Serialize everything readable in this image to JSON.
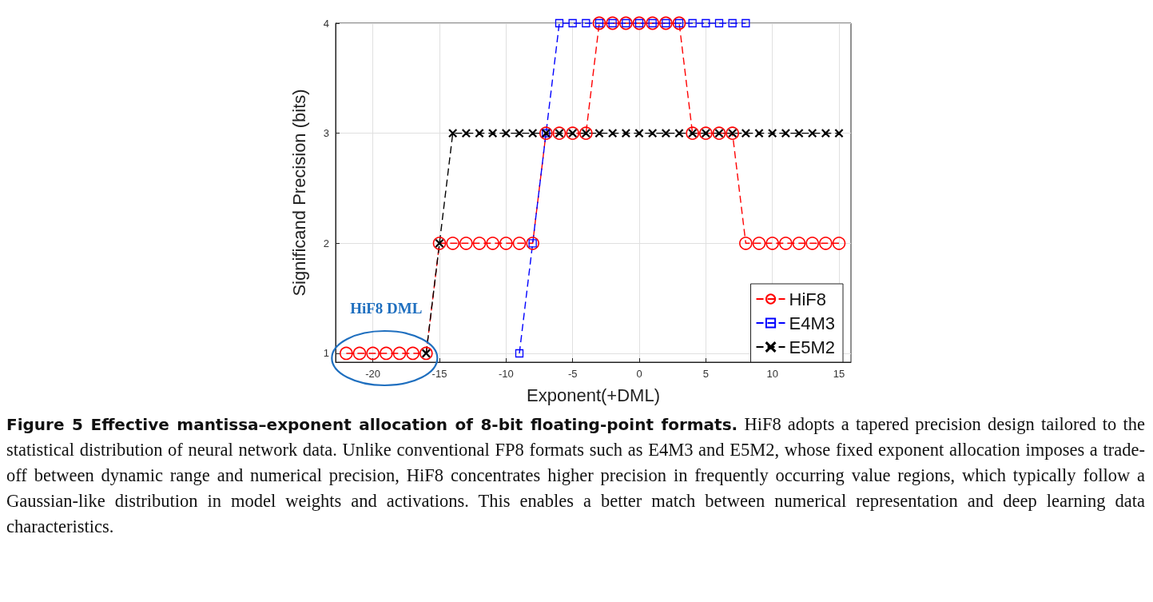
{
  "chart_data": {
    "type": "line",
    "title": "Figure 5  Effective mantissa–exponent allocation of 8-bit floating-point formats.",
    "subtitle": "HiF8 adopts a tapered precision design tailored to the statistical distribution of neural network data. Unlike conventional FP8 formats such as E4M3 and E5M2, whose fixed exponent allocation imposes a trade-off between dynamic range and numerical precision, HiF8 concentrates higher precision in frequently occurring value regions, which typically follow a Gaussian-like distribution in model weights and activations. This enables a better match between numerical representation and deep learning data characteristics.",
    "xlabel": "Exponent(+DML)",
    "ylabel": "Significand Precision (bits)",
    "xlim": [
      -22.8,
      15.9
    ],
    "ylim": [
      0.92,
      4
    ],
    "xticks": [
      -20,
      -15,
      -10,
      -5,
      0,
      5,
      10,
      15
    ],
    "yticks": [
      1,
      2,
      3,
      4
    ],
    "grid": true,
    "legend": "bottom right",
    "line_style": "dashed",
    "annotations": [
      "HiF8 DML"
    ],
    "series": [
      {
        "name": "HiF8",
        "color": "#ff0000",
        "marker": "circle",
        "x": [
          -22,
          -21,
          -20,
          -19,
          -18,
          -17,
          -16,
          -15,
          -14,
          -13,
          -12,
          -11,
          -10,
          -9,
          -8,
          -7,
          -6,
          -5,
          -4,
          -3,
          -2,
          -1,
          0,
          1,
          2,
          3,
          4,
          5,
          6,
          7,
          8,
          9,
          10,
          11,
          12,
          13,
          14,
          15
        ],
        "values": [
          1,
          1,
          1,
          1,
          1,
          1,
          1,
          2,
          2,
          2,
          2,
          2,
          2,
          2,
          2,
          3,
          3,
          3,
          3,
          4,
          4,
          4,
          4,
          4,
          4,
          4,
          3,
          3,
          3,
          3,
          2,
          2,
          2,
          2,
          2,
          2,
          2,
          2
        ]
      },
      {
        "name": "E4M3",
        "color": "#0000ff",
        "marker": "square",
        "x": [
          -9,
          -8,
          -7,
          -6,
          -5,
          -4,
          -3,
          -2,
          -1,
          0,
          1,
          2,
          3,
          4,
          5,
          6,
          7,
          8
        ],
        "values": [
          1,
          2,
          3,
          4,
          4,
          4,
          4,
          4,
          4,
          4,
          4,
          4,
          4,
          4,
          4,
          4,
          4,
          4
        ]
      },
      {
        "name": "E5M2",
        "color": "#000000",
        "marker": "cross",
        "x": [
          -16,
          -15,
          -14,
          -13,
          -12,
          -11,
          -10,
          -9,
          -8,
          -7,
          -6,
          -5,
          -4,
          -3,
          -2,
          -1,
          0,
          1,
          2,
          3,
          4,
          5,
          6,
          7,
          8,
          9,
          10,
          11,
          12,
          13,
          14,
          15
        ],
        "values": [
          1,
          2,
          3,
          3,
          3,
          3,
          3,
          3,
          3,
          3,
          3,
          3,
          3,
          3,
          3,
          3,
          3,
          3,
          3,
          3,
          3,
          3,
          3,
          3,
          3,
          3,
          3,
          3,
          3,
          3,
          3,
          3
        ]
      }
    ]
  }
}
